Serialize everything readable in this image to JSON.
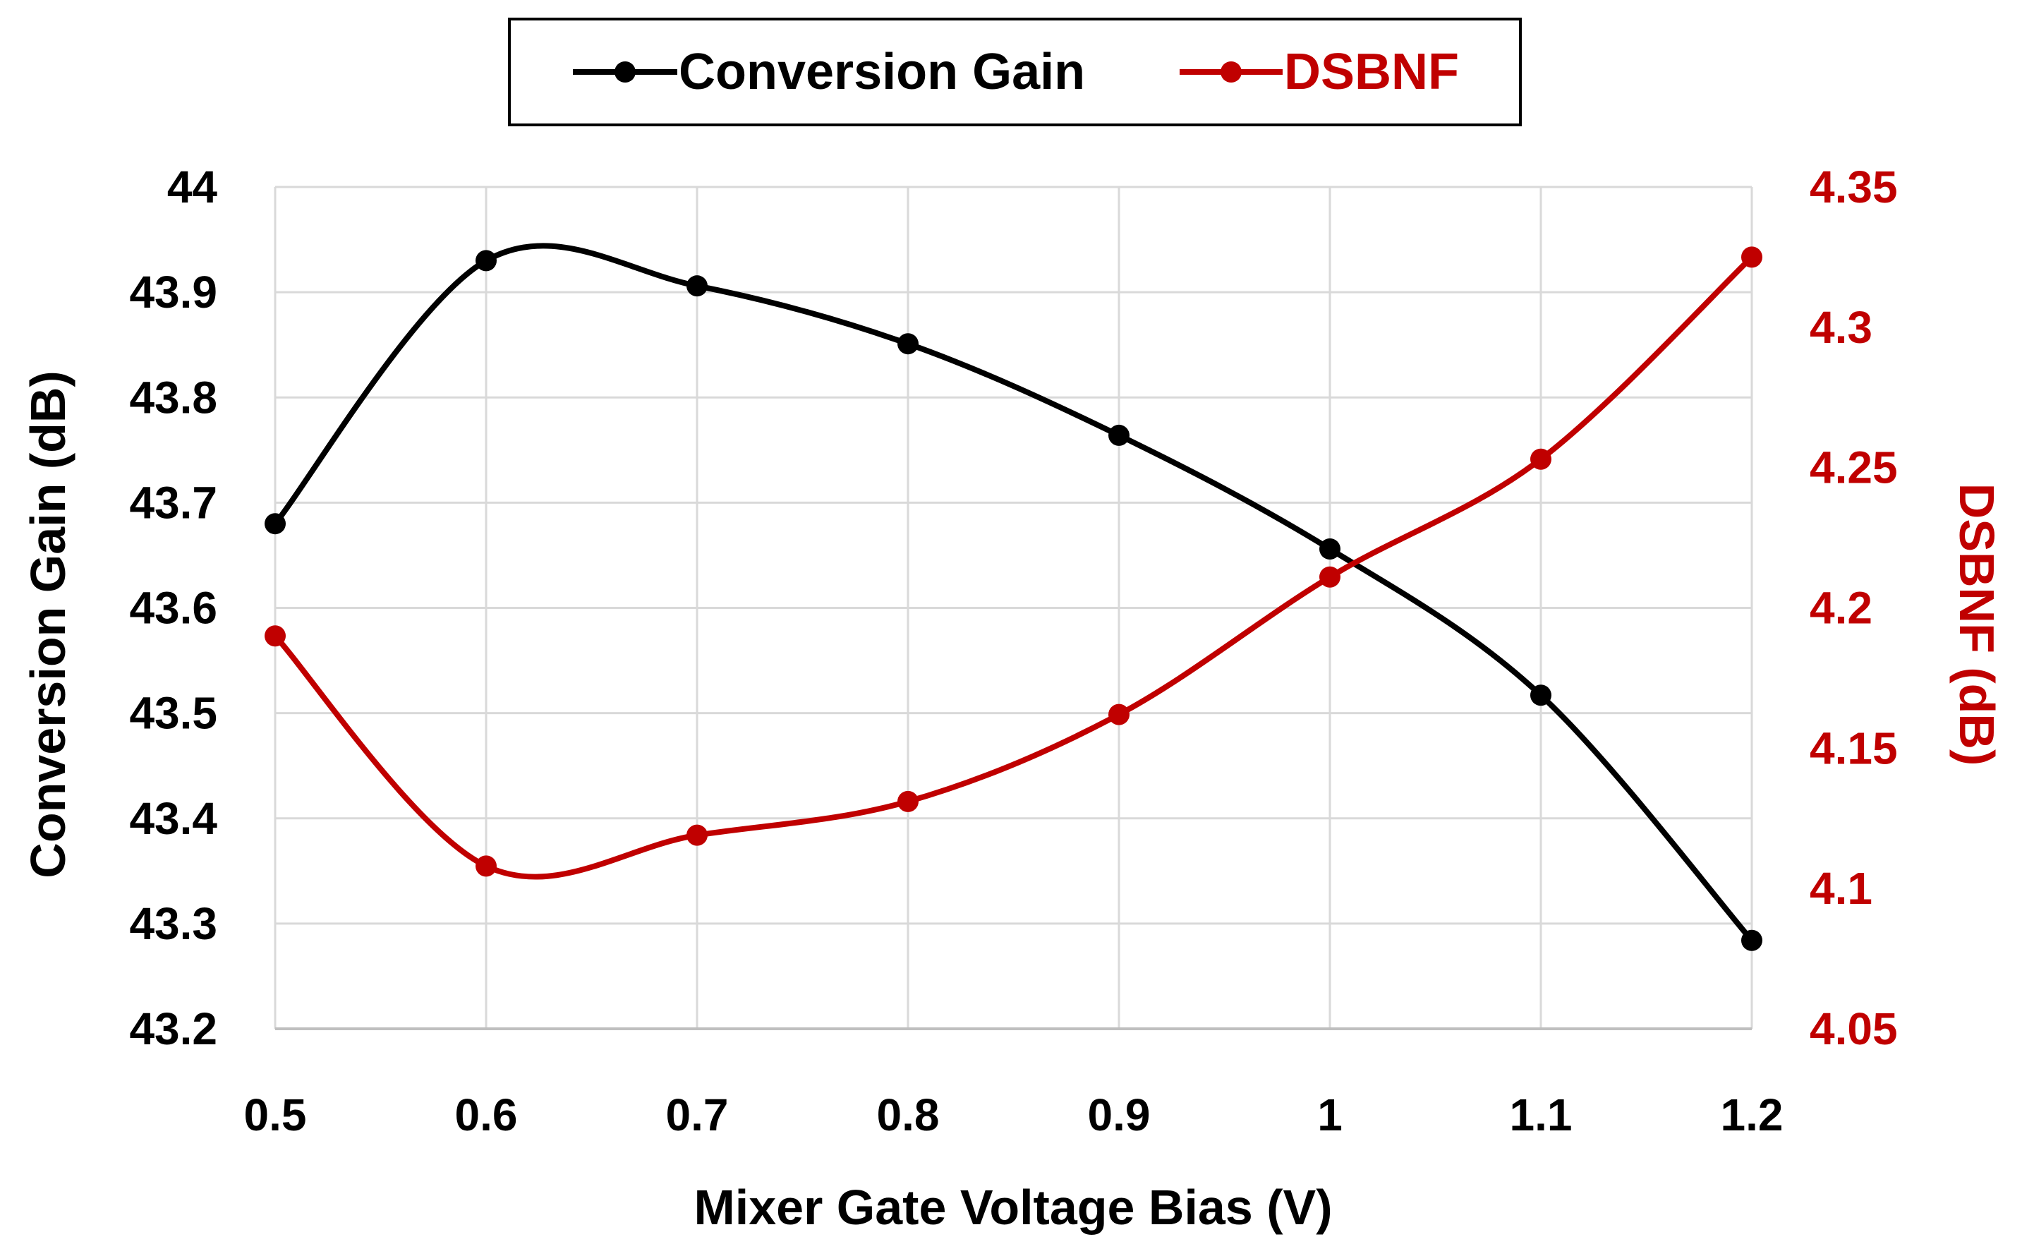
{
  "chart_data": {
    "type": "line",
    "title": "",
    "xlabel": "Mixer Gate Voltage  Bias (V)",
    "ylabel_left": "Conversion Gain (dB)",
    "ylabel_right": "DSBNF (dB)",
    "x": [
      0.5,
      0.6,
      0.7,
      0.8,
      0.9,
      1.0,
      1.1,
      1.2
    ],
    "x_tick_labels": [
      "0.5",
      "0.6",
      "0.7",
      "0.8",
      "0.9",
      "1",
      "1.1",
      "1.2"
    ],
    "xlim": [
      0.5,
      1.2
    ],
    "ylim_left": [
      43.2,
      44.0
    ],
    "y_left_ticks": [
      "43.2",
      "43.3",
      "43.4",
      "43.5",
      "43.6",
      "43.7",
      "43.8",
      "43.9",
      "44"
    ],
    "ylim_right": [
      4.05,
      4.35
    ],
    "y_right_ticks": [
      "4.05",
      "4.1",
      "4.15",
      "4.2",
      "4.25",
      "4.3",
      "4.35"
    ],
    "grid": true,
    "legend_position": "top-center",
    "series": [
      {
        "name": "Conversion Gain",
        "axis": "left",
        "color": "#000000",
        "values": [
          43.68,
          43.93,
          43.906,
          43.851,
          43.764,
          43.656,
          43.517,
          43.284
        ]
      },
      {
        "name": "DSBNF",
        "axis": "right",
        "color": "#c00000",
        "values": [
          4.19,
          4.108,
          4.119,
          4.131,
          4.162,
          4.211,
          4.253,
          4.325
        ]
      }
    ]
  }
}
